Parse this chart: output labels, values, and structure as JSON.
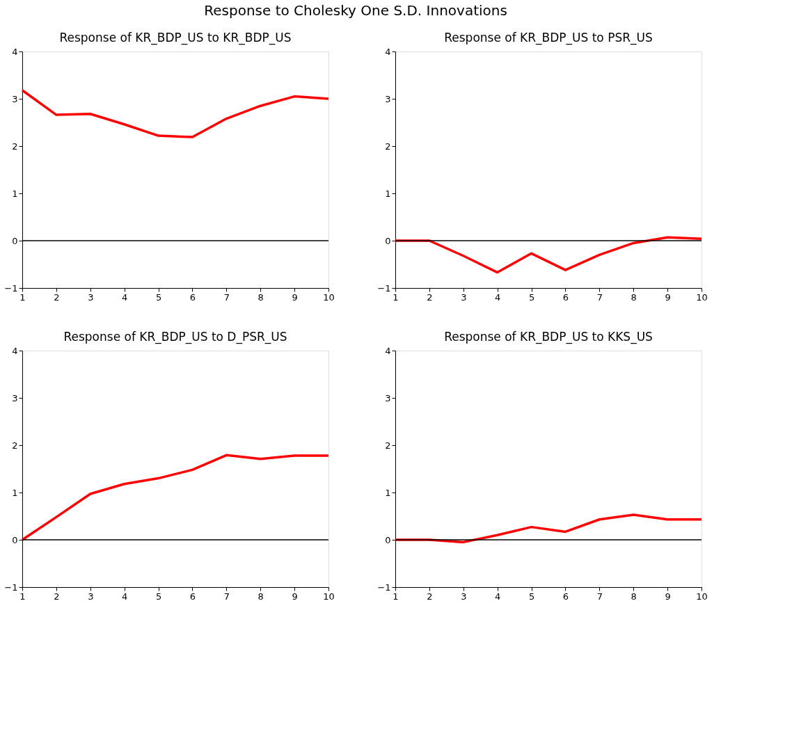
{
  "chart_data": [
    {
      "type": "line",
      "title": "Response of KR_BDP_US to KR_BDP_US",
      "annotations": [
        "Response to Cholesky One S.D. Innovations"
      ],
      "x": [
        1,
        2,
        3,
        4,
        5,
        6,
        7,
        8,
        9,
        10
      ],
      "series": [
        {
          "color": "#ff0000",
          "values": [
            3.18,
            2.66,
            2.68,
            2.46,
            2.22,
            2.19,
            2.58,
            2.85,
            3.05,
            3.0
          ]
        }
      ],
      "xlim": [
        1,
        10
      ],
      "xticks": [
        1,
        2,
        3,
        4,
        5,
        6,
        7,
        8,
        9,
        10
      ],
      "ylim": [
        -1,
        4
      ],
      "yticks": [
        -1,
        0,
        1,
        2,
        3,
        4
      ],
      "ref_lines": [
        {
          "axis": "y",
          "value": 0,
          "color": "#000000"
        }
      ],
      "grid": false,
      "line_style": "solid"
    },
    {
      "type": "line",
      "title": "Response of KR_BDP_US to PSR_US",
      "x": [
        1,
        2,
        3,
        4,
        5,
        6,
        7,
        8,
        9,
        10
      ],
      "series": [
        {
          "color": "#ff0000",
          "values": [
            0,
            0,
            -0.32,
            -0.67,
            -0.27,
            -0.62,
            -0.3,
            -0.05,
            0.07,
            0.04
          ]
        }
      ],
      "xlim": [
        1,
        10
      ],
      "xticks": [
        1,
        2,
        3,
        4,
        5,
        6,
        7,
        8,
        9,
        10
      ],
      "ylim": [
        -1,
        4
      ],
      "yticks": [
        -1,
        0,
        1,
        2,
        3,
        4
      ],
      "ref_lines": [
        {
          "axis": "y",
          "value": 0,
          "color": "#000000"
        }
      ],
      "grid": false,
      "line_style": "solid"
    },
    {
      "type": "line",
      "title": "Response of KR_BDP_US to D_PSR_US",
      "x": [
        1,
        2,
        3,
        4,
        5,
        6,
        7,
        8,
        9,
        10
      ],
      "series": [
        {
          "color": "#ff0000",
          "values": [
            0,
            0.48,
            0.97,
            1.18,
            1.3,
            1.48,
            1.79,
            1.71,
            1.78,
            1.78
          ]
        }
      ],
      "xlim": [
        1,
        10
      ],
      "xticks": [
        1,
        2,
        3,
        4,
        5,
        6,
        7,
        8,
        9,
        10
      ],
      "ylim": [
        -1,
        4
      ],
      "yticks": [
        -1,
        0,
        1,
        2,
        3,
        4
      ],
      "ref_lines": [
        {
          "axis": "y",
          "value": 0,
          "color": "#000000"
        }
      ],
      "grid": false,
      "line_style": "solid"
    },
    {
      "type": "line",
      "title": "Response of KR_BDP_US to KKS_US",
      "x": [
        1,
        2,
        3,
        4,
        5,
        6,
        7,
        8,
        9,
        10
      ],
      "series": [
        {
          "color": "#ff0000",
          "values": [
            0,
            0,
            -0.05,
            0.1,
            0.27,
            0.17,
            0.43,
            0.53,
            0.43,
            0.43
          ]
        }
      ],
      "xlim": [
        1,
        10
      ],
      "xticks": [
        1,
        2,
        3,
        4,
        5,
        6,
        7,
        8,
        9,
        10
      ],
      "ylim": [
        -1,
        4
      ],
      "yticks": [
        -1,
        0,
        1,
        2,
        3,
        4
      ],
      "ref_lines": [
        {
          "axis": "y",
          "value": 0,
          "color": "#000000"
        }
      ],
      "grid": false,
      "line_style": "solid"
    }
  ]
}
